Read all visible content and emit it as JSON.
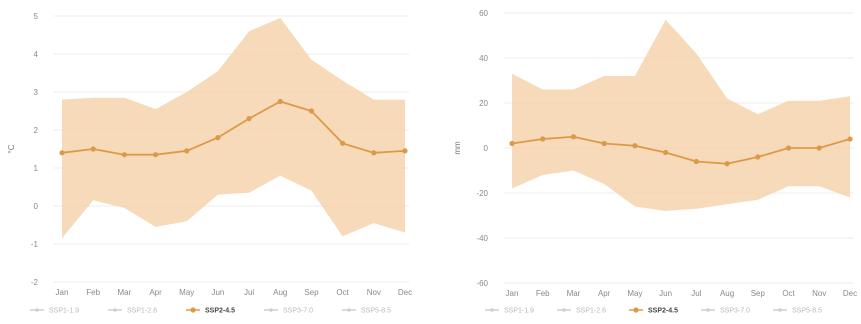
{
  "colors": {
    "band": "#f6d3ad",
    "line": "#dc9a48",
    "grid": "#ececec",
    "legend_inactive": "#cfcfcf"
  },
  "legend": [
    {
      "label": "SSP1-1.9",
      "active": false
    },
    {
      "label": "SSP1-2.6",
      "active": false
    },
    {
      "label": "SSP2-4.5",
      "active": true
    },
    {
      "label": "SSP3-7.0",
      "active": false
    },
    {
      "label": "SSP5-8.5",
      "active": false
    }
  ],
  "chart_data": [
    {
      "type": "area",
      "ylabel": "°C",
      "ylim": [
        -2,
        5
      ],
      "yticks": [
        -2,
        -1,
        0,
        1,
        2,
        3,
        4,
        5
      ],
      "grid": true,
      "legend_position": "bottom",
      "categories": [
        "Jan",
        "Feb",
        "Mar",
        "Apr",
        "May",
        "Jun",
        "Jul",
        "Aug",
        "Sep",
        "Oct",
        "Nov",
        "Dec"
      ],
      "series": [
        {
          "name": "SSP2-4.5",
          "values": [
            1.4,
            1.5,
            1.35,
            1.35,
            1.45,
            1.8,
            2.3,
            2.75,
            2.5,
            1.65,
            1.4,
            1.45
          ]
        }
      ],
      "band": {
        "upper": [
          2.8,
          2.85,
          2.85,
          2.55,
          3.0,
          3.55,
          4.6,
          4.95,
          3.85,
          3.3,
          2.8,
          2.8
        ],
        "lower": [
          -0.85,
          0.15,
          -0.05,
          -0.55,
          -0.4,
          0.3,
          0.35,
          0.8,
          0.4,
          -0.8,
          -0.45,
          -0.7
        ]
      }
    },
    {
      "type": "area",
      "ylabel": "mm",
      "ylim": [
        -60,
        60
      ],
      "yticks": [
        -60,
        -40,
        -20,
        0,
        20,
        40,
        60
      ],
      "grid": true,
      "legend_position": "bottom",
      "categories": [
        "Jan",
        "Feb",
        "Mar",
        "Apr",
        "May",
        "Jun",
        "Jul",
        "Aug",
        "Sep",
        "Oct",
        "Nov",
        "Dec"
      ],
      "series": [
        {
          "name": "SSP2-4.5",
          "values": [
            2,
            4,
            5,
            2,
            1,
            -2,
            -6,
            -7,
            -4,
            0,
            0,
            4
          ]
        }
      ],
      "band": {
        "upper": [
          33,
          26,
          26,
          32,
          32,
          57,
          42,
          22,
          15,
          21,
          21,
          23
        ],
        "lower": [
          -18,
          -12,
          -10,
          -16,
          -26,
          -28,
          -27,
          -25,
          -23,
          -17,
          -17,
          -22
        ]
      }
    }
  ]
}
